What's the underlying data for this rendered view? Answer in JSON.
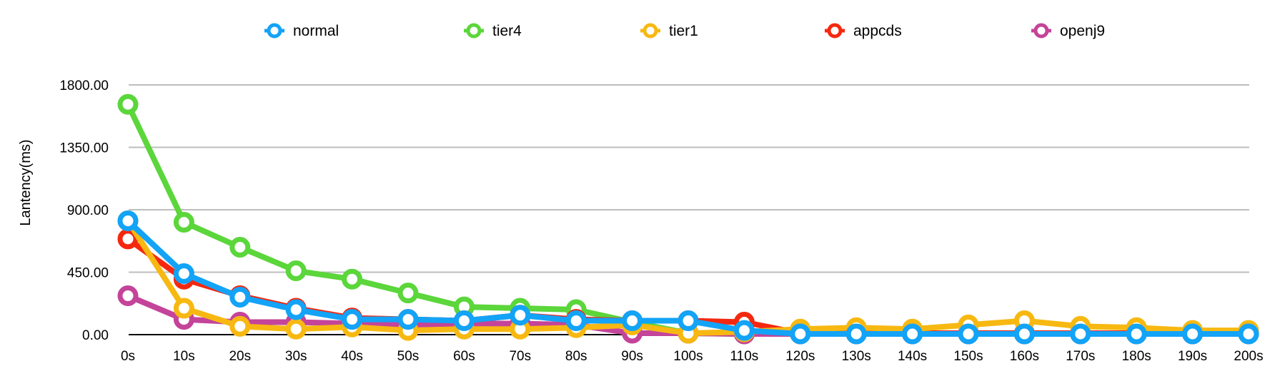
{
  "chart_data": {
    "type": "line",
    "title": "",
    "xlabel": "",
    "ylabel": "Lantency(ms)",
    "ylim": [
      0,
      1800
    ],
    "y_ticks": [
      "0.00",
      "450.00",
      "900.00",
      "1350.00",
      "1800.00"
    ],
    "y_tick_values": [
      0,
      450,
      900,
      1350,
      1800
    ],
    "categories": [
      "0s",
      "10s",
      "20s",
      "30s",
      "40s",
      "50s",
      "60s",
      "70s",
      "80s",
      "90s",
      "100s",
      "110s",
      "120s",
      "130s",
      "140s",
      "150s",
      "160s",
      "170s",
      "180s",
      "190s",
      "200s"
    ],
    "grid": true,
    "legend_position": "top",
    "series": [
      {
        "name": "tier4",
        "color": "#5BD63B",
        "values": [
          1660,
          810,
          630,
          460,
          400,
          300,
          200,
          190,
          180,
          90,
          10,
          5,
          5,
          5,
          5,
          5,
          5,
          5,
          5,
          5,
          5
        ]
      },
      {
        "name": "openj9",
        "color": "#C4449A",
        "values": [
          280,
          110,
          90,
          90,
          80,
          70,
          80,
          80,
          70,
          10,
          10,
          5,
          5,
          5,
          5,
          5,
          5,
          5,
          5,
          5,
          5
        ]
      },
      {
        "name": "appcds",
        "color": "#F5280F",
        "values": [
          690,
          400,
          280,
          190,
          120,
          110,
          100,
          140,
          110,
          100,
          100,
          90,
          10,
          10,
          10,
          10,
          10,
          10,
          10,
          10,
          10
        ]
      },
      {
        "name": "tier1",
        "color": "#F7B811",
        "values": [
          820,
          190,
          60,
          40,
          55,
          30,
          40,
          40,
          50,
          70,
          10,
          20,
          40,
          50,
          40,
          70,
          100,
          60,
          50,
          30,
          30
        ]
      },
      {
        "name": "normal",
        "color": "#13A3F7",
        "values": [
          820,
          440,
          270,
          180,
          110,
          110,
          100,
          140,
          100,
          100,
          100,
          30,
          5,
          5,
          5,
          5,
          5,
          5,
          5,
          5,
          5
        ]
      }
    ],
    "legend": [
      {
        "name": "normal",
        "color": "#13A3F7"
      },
      {
        "name": "tier4",
        "color": "#5BD63B"
      },
      {
        "name": "tier1",
        "color": "#F7B811"
      },
      {
        "name": "appcds",
        "color": "#F5280F"
      },
      {
        "name": "openj9",
        "color": "#C4449A"
      }
    ]
  }
}
